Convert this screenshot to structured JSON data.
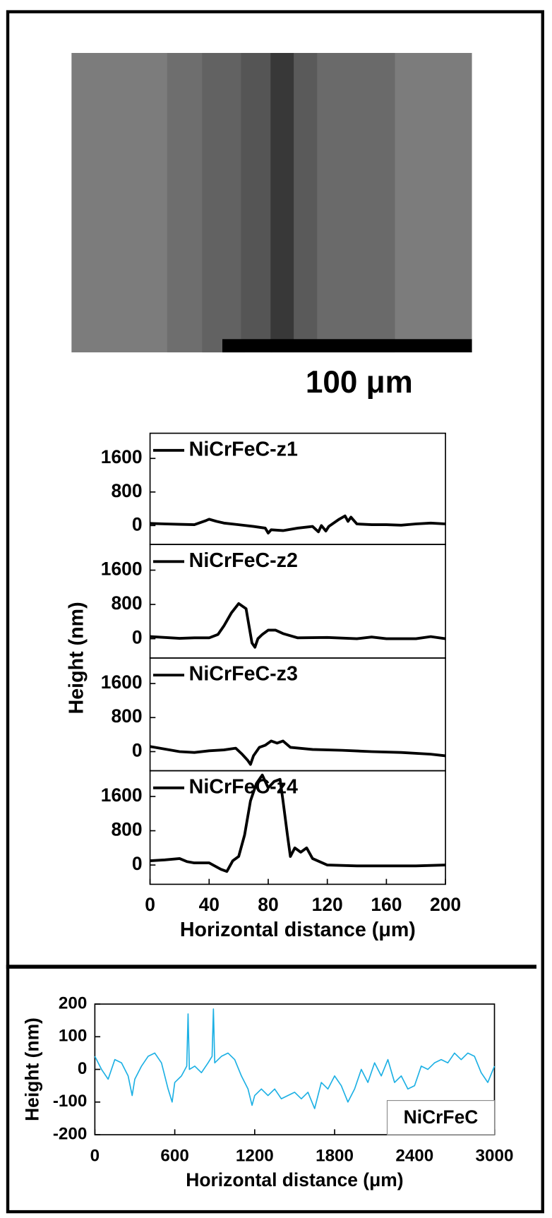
{
  "image": {
    "scale_bar_label": "100 μm"
  },
  "chart_data": [
    {
      "type": "line",
      "xlim": [
        0,
        200
      ],
      "ylim": [
        -450,
        2200
      ],
      "yticks": [
        0,
        800,
        1600
      ],
      "legend": "upper left",
      "series": [
        {
          "name": "NiCrFeC-z1",
          "color": "#000000",
          "x": [
            0,
            10,
            20,
            30,
            38,
            40,
            45,
            50,
            60,
            70,
            78,
            80,
            82,
            90,
            100,
            110,
            114,
            116,
            119,
            121,
            128,
            132,
            134,
            136,
            140,
            150,
            160,
            170,
            180,
            190,
            200
          ],
          "values": [
            50,
            40,
            30,
            20,
            120,
            150,
            100,
            60,
            20,
            -20,
            -60,
            -180,
            -100,
            -120,
            -60,
            -20,
            -150,
            0,
            -130,
            -20,
            150,
            230,
            100,
            200,
            40,
            20,
            20,
            10,
            40,
            60,
            40
          ]
        }
      ]
    },
    {
      "type": "line",
      "xlim": [
        0,
        200
      ],
      "ylim": [
        -450,
        2200
      ],
      "yticks": [
        0,
        800,
        1600
      ],
      "legend": "upper left",
      "ylabel": "Height (nm)",
      "series": [
        {
          "name": "NiCrFeC-z2",
          "color": "#000000",
          "x": [
            0,
            10,
            20,
            30,
            40,
            46,
            50,
            55,
            60,
            65,
            67,
            69,
            71,
            73,
            76,
            80,
            85,
            90,
            100,
            120,
            140,
            150,
            160,
            180,
            190,
            200
          ],
          "values": [
            50,
            30,
            10,
            20,
            20,
            100,
            300,
            600,
            820,
            700,
            300,
            -100,
            -200,
            0,
            100,
            200,
            200,
            120,
            20,
            30,
            0,
            40,
            0,
            0,
            50,
            0
          ]
        }
      ]
    },
    {
      "type": "line",
      "xlim": [
        0,
        200
      ],
      "ylim": [
        -450,
        2200
      ],
      "yticks": [
        0,
        800,
        1600
      ],
      "legend": "upper left",
      "series": [
        {
          "name": "NiCrFeC-z3",
          "color": "#000000",
          "x": [
            0,
            10,
            20,
            30,
            40,
            50,
            58,
            62,
            66,
            68,
            70,
            74,
            78,
            82,
            86,
            90,
            95,
            110,
            130,
            150,
            170,
            190,
            200
          ],
          "values": [
            120,
            60,
            0,
            -20,
            20,
            40,
            80,
            -50,
            -200,
            -300,
            -100,
            100,
            150,
            250,
            200,
            250,
            100,
            50,
            30,
            0,
            -20,
            -60,
            -100
          ]
        }
      ]
    },
    {
      "type": "line",
      "xlim": [
        0,
        200
      ],
      "ylim": [
        -450,
        2200
      ],
      "yticks": [
        0,
        800,
        1600
      ],
      "xticks": [
        0,
        40,
        80,
        120,
        160,
        200
      ],
      "legend": "upper left",
      "xlabel": "Horizontal distance (μm)",
      "series": [
        {
          "name": "NiCrFeC-z4",
          "color": "#000000",
          "x": [
            0,
            10,
            20,
            25,
            30,
            40,
            48,
            52,
            56,
            60,
            64,
            68,
            72,
            76,
            80,
            84,
            88,
            90,
            93,
            95,
            98,
            102,
            106,
            110,
            120,
            140,
            160,
            180,
            200
          ],
          "values": [
            100,
            120,
            150,
            80,
            50,
            50,
            -100,
            -150,
            100,
            200,
            700,
            1500,
            1900,
            2100,
            1800,
            1950,
            2000,
            1500,
            700,
            200,
            400,
            300,
            400,
            150,
            0,
            -20,
            -20,
            -20,
            0
          ]
        }
      ]
    },
    {
      "type": "line",
      "xlim": [
        0,
        3000
      ],
      "ylim": [
        -200,
        200
      ],
      "yticks": [
        -200,
        -100,
        0,
        100,
        200
      ],
      "xticks": [
        0,
        600,
        1200,
        1800,
        2400,
        3000
      ],
      "legend": "lower right",
      "xlabel": "Horizontal distance (μm)",
      "ylabel": "Height (nm)",
      "series": [
        {
          "name": "NiCrFeC",
          "color": "#1cb0e4",
          "x": [
            0,
            50,
            100,
            150,
            200,
            250,
            280,
            300,
            350,
            400,
            450,
            500,
            550,
            580,
            600,
            650,
            690,
            700,
            710,
            750,
            800,
            850,
            880,
            890,
            900,
            950,
            1000,
            1050,
            1100,
            1150,
            1180,
            1200,
            1250,
            1300,
            1350,
            1400,
            1450,
            1500,
            1550,
            1600,
            1650,
            1700,
            1750,
            1800,
            1850,
            1900,
            1950,
            2000,
            2050,
            2100,
            2150,
            2200,
            2250,
            2300,
            2350,
            2400,
            2450,
            2500,
            2550,
            2600,
            2650,
            2700,
            2750,
            2800,
            2850,
            2900,
            2950,
            3000
          ],
          "values": [
            40,
            0,
            -30,
            30,
            20,
            -20,
            -80,
            -30,
            10,
            40,
            50,
            20,
            -60,
            -100,
            -40,
            -20,
            10,
            170,
            0,
            10,
            -10,
            20,
            40,
            185,
            20,
            40,
            50,
            30,
            -20,
            -60,
            -110,
            -80,
            -60,
            -80,
            -60,
            -90,
            -80,
            -70,
            -90,
            -70,
            -120,
            -40,
            -60,
            -20,
            -50,
            -100,
            -60,
            0,
            -40,
            20,
            -20,
            30,
            -40,
            -20,
            -60,
            -50,
            10,
            0,
            20,
            30,
            20,
            50,
            30,
            50,
            40,
            -10,
            -40,
            10
          ]
        }
      ]
    }
  ]
}
